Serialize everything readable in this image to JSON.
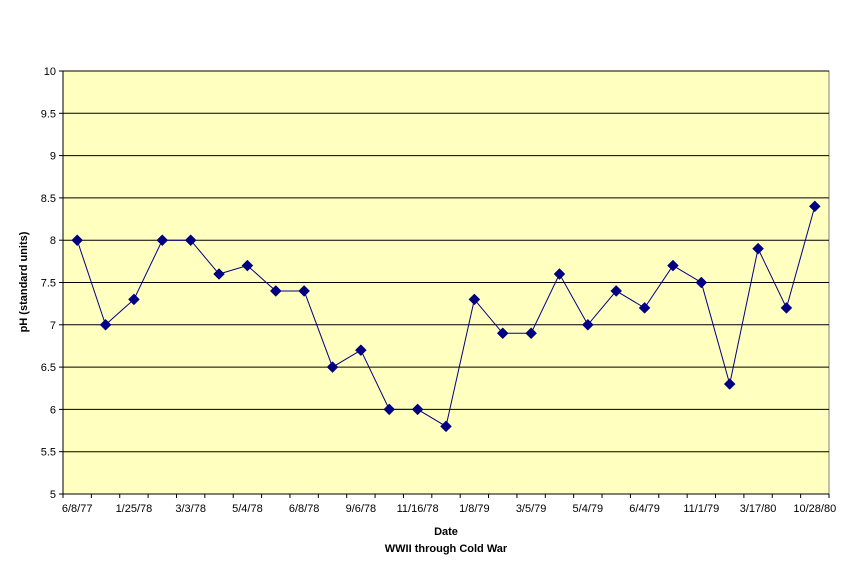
{
  "chart_data": {
    "type": "line",
    "title": "",
    "xlabel": "Date",
    "subtitle": "WWII through Cold War",
    "ylabel": "pH (standard units)",
    "ylim": [
      5,
      10
    ],
    "y_ticks": [
      "5",
      "5.5",
      "6",
      "6.5",
      "7",
      "7.5",
      "8",
      "8.5",
      "9",
      "9.5",
      "10"
    ],
    "x_tick_labels": [
      "6/8/77",
      "1/25/78",
      "3/3/78",
      "5/4/78",
      "6/8/78",
      "9/6/78",
      "11/16/78",
      "1/8/79",
      "3/5/79",
      "5/4/79",
      "6/4/79",
      "11/1/79",
      "3/17/80",
      "10/28/80"
    ],
    "grid": true,
    "legend": "none",
    "colors": {
      "plot_background": "#FFFFC0",
      "series": "#000080",
      "gridline": "#000000"
    },
    "series": [
      {
        "values": [
          8.0,
          7.0,
          7.3,
          8.0,
          8.0,
          7.6,
          7.7,
          7.4,
          7.4,
          6.5,
          6.7,
          6.0,
          6.0,
          5.8,
          7.3,
          6.9,
          6.9,
          7.6,
          7.0,
          7.4,
          7.2,
          7.7,
          7.5,
          6.3,
          7.9,
          7.2,
          8.4
        ]
      }
    ]
  }
}
